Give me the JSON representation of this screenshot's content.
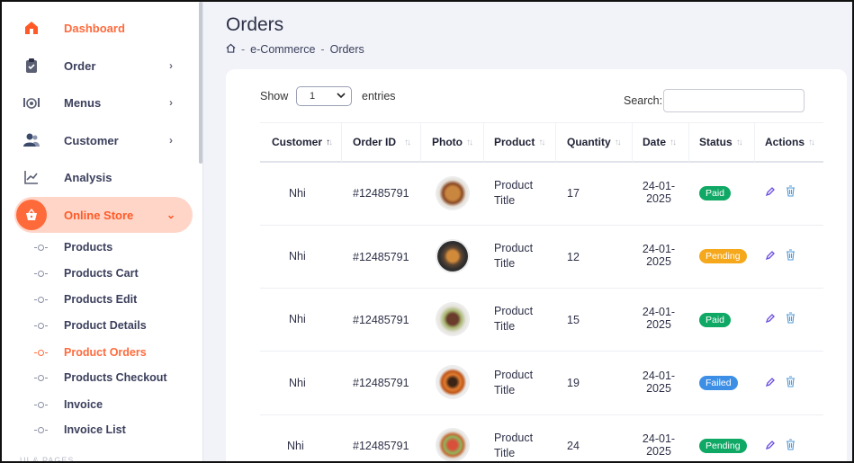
{
  "sidebar": {
    "items": [
      {
        "label": "Dashboard",
        "icon": "home-icon"
      },
      {
        "label": "Order",
        "icon": "clipboard-icon",
        "chevron": "›"
      },
      {
        "label": "Menus",
        "icon": "utensils-icon",
        "chevron": "›"
      },
      {
        "label": "Customer",
        "icon": "users-icon",
        "chevron": "›"
      },
      {
        "label": "Analysis",
        "icon": "chart-line-icon"
      },
      {
        "label": "Online Store",
        "icon": "basket-icon",
        "chevron": "⌄"
      }
    ],
    "sub_items": [
      "Products",
      "Products Cart",
      "Products Edit",
      "Product Details",
      "Product Orders",
      "Products Checkout",
      "Invoice",
      "Invoice List"
    ],
    "section_label": "UI & PAGES"
  },
  "header": {
    "title": "Orders",
    "breadcrumb": {
      "home_icon": "home-icon",
      "sep": "-",
      "parent": "e-Commerce",
      "current": "Orders"
    }
  },
  "controls": {
    "show_label": "Show",
    "entries_value": "1",
    "entries_label": "entries",
    "search_label": "Search:",
    "search_value": ""
  },
  "table": {
    "columns": [
      "Customer",
      "Order ID",
      "Photo",
      "Product",
      "Quantity",
      "Date",
      "Status",
      "Actions"
    ],
    "rows": [
      {
        "customer": "Nhi",
        "order_id": "#12485791",
        "product_1": "Product",
        "product_2": "Title",
        "quantity": "17",
        "date_1": "24-01-",
        "date_2": "2025",
        "status": "Paid"
      },
      {
        "customer": "Nhi",
        "order_id": "#12485791",
        "product_1": "Product",
        "product_2": "Title",
        "quantity": "12",
        "date_1": "24-01-",
        "date_2": "2025",
        "status": "Pending"
      },
      {
        "customer": "Nhi",
        "order_id": "#12485791",
        "product_1": "Product",
        "product_2": "Title",
        "quantity": "15",
        "date_1": "24-01-",
        "date_2": "2025",
        "status": "Paid"
      },
      {
        "customer": "Nhi",
        "order_id": "#12485791",
        "product_1": "Product",
        "product_2": "Title",
        "quantity": "19",
        "date_1": "24-01-",
        "date_2": "2025",
        "status": "Failed"
      },
      {
        "customer": "Nhi",
        "order_id": "#12485791",
        "product_1": "Product",
        "product_2": "Title",
        "quantity": "24",
        "date_1": "24-01-",
        "date_2": "2025",
        "status": "Pending"
      }
    ]
  },
  "colors": {
    "accent": "#ff6b3d",
    "paid": "#0fa865",
    "pending_yellow": "#f5a81c",
    "failed": "#3d8fe6"
  }
}
